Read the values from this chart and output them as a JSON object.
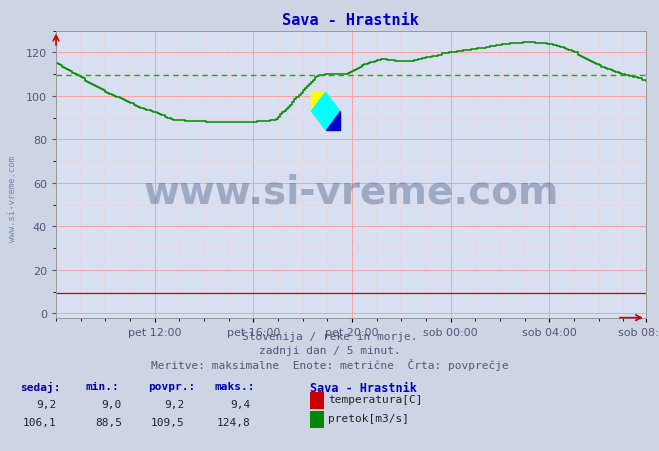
{
  "title": "Sava - Hrastnik",
  "title_color": "#0000cc",
  "bg_color": "#cdd5e4",
  "plot_bg_color": "#d8dff0",
  "grid_color_major": "#ff9999",
  "grid_color_minor": "#ffcccc",
  "xlabel_ticks": [
    "pet 12:00",
    "pet 16:00",
    "pet 20:00",
    "sob 00:00",
    "sob 04:00",
    "sob 08:00"
  ],
  "ylabel_ticks": [
    0,
    20,
    40,
    60,
    80,
    100,
    120
  ],
  "ylim": [
    -2,
    130
  ],
  "n_points": 288,
  "avg_line_value": 109.5,
  "avg_line_color": "#00bb00",
  "temp_color": "#cc0000",
  "flow_color": "#008800",
  "watermark_text": "www.si-vreme.com",
  "watermark_color": "#1a3060",
  "watermark_alpha": 0.3,
  "watermark_fontsize": 28,
  "side_label": "www.si-vreme.com",
  "side_label_color": "#6677aa",
  "footer_line1": "Slovenija / reke in morje.",
  "footer_line2": "zadnji dan / 5 minut.",
  "footer_line3": "Meritve: maksimalne  Enote: metrične  Črta: povprečje",
  "footer_color": "#555577",
  "legend_title": "Sava - Hrastnik",
  "legend_title_color": "#0000cc",
  "stat_headers": [
    "sedaj:",
    "min.:",
    "povpr.:",
    "maks.:"
  ],
  "stat_temp": [
    "9,2",
    "9,0",
    "9,2",
    "9,4"
  ],
  "stat_flow": [
    "106,1",
    "88,5",
    "109,5",
    "124,8"
  ],
  "label_temp": "temperatura[C]",
  "label_flow": "pretok[m3/s]",
  "tick_color": "#555577",
  "tick_fontsize": 8,
  "arrow_color": "#cc0000",
  "flow_keypoints_x": [
    0,
    0.02,
    0.05,
    0.09,
    0.14,
    0.2,
    0.27,
    0.33,
    0.37,
    0.39,
    0.41,
    0.44,
    0.46,
    0.49,
    0.52,
    0.55,
    0.58,
    0.6,
    0.63,
    0.67,
    0.72,
    0.76,
    0.8,
    0.84,
    0.88,
    0.92,
    0.96,
    1.0
  ],
  "flow_keypoints_y": [
    115,
    112,
    107,
    101,
    95,
    89,
    88,
    88,
    89,
    94,
    100,
    109,
    110,
    110,
    114,
    117,
    116,
    116,
    118,
    120,
    122,
    124,
    125,
    124,
    120,
    114,
    110,
    107
  ]
}
